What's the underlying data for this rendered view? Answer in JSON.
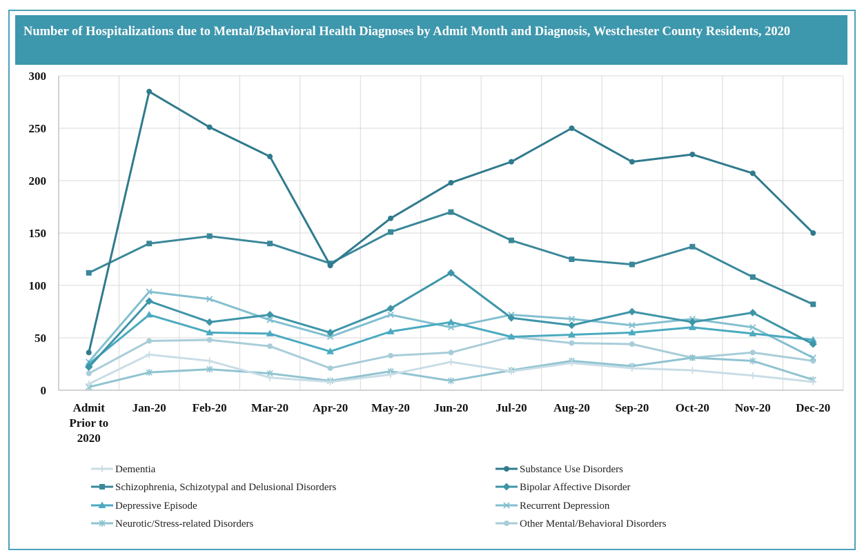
{
  "chart_data": {
    "type": "line",
    "title": "Number of Hospitalizations  due to Mental/Behavioral Health Diagnoses by Admit Month and Diagnosis, Westchester County Residents, 2020",
    "categories": [
      [
        "Admit",
        "Prior to",
        "2020"
      ],
      [
        "Jan-20"
      ],
      [
        "Feb-20"
      ],
      [
        "Mar-20"
      ],
      [
        "Apr-20"
      ],
      [
        "May-20"
      ],
      [
        "Jun-20"
      ],
      [
        "Jul-20"
      ],
      [
        "Aug-20"
      ],
      [
        "Sep-20"
      ],
      [
        "Oct-20"
      ],
      [
        "Nov-20"
      ],
      [
        "Dec-20"
      ]
    ],
    "y_ticks": [
      "0",
      "50",
      "100",
      "150",
      "200",
      "250",
      "300"
    ],
    "ylim": [
      0,
      300
    ],
    "grid": true,
    "legend_position": "bottom",
    "series": [
      {
        "name": "Dementia",
        "marker": "plus",
        "color": "#c9dde6",
        "values": [
          6,
          34,
          28,
          12,
          8,
          15,
          27,
          18,
          26,
          21,
          19,
          14,
          8
        ]
      },
      {
        "name": "Substance Use Disorders",
        "marker": "circle",
        "color": "#2f7a8d",
        "values": [
          36,
          285,
          251,
          223,
          119,
          164,
          198,
          218,
          250,
          218,
          225,
          207,
          150
        ]
      },
      {
        "name": "Schizophrenia, Schizotypal and Delusional Disorders",
        "marker": "square",
        "color": "#3a8799",
        "values": [
          112,
          140,
          147,
          140,
          121,
          151,
          170,
          143,
          125,
          120,
          137,
          108,
          82
        ]
      },
      {
        "name": "Bipolar Affective Disorder",
        "marker": "diamond",
        "color": "#3e95a8",
        "values": [
          22,
          85,
          65,
          72,
          55,
          78,
          112,
          69,
          62,
          75,
          65,
          74,
          44
        ]
      },
      {
        "name": "Depressive Episode",
        "marker": "triangle",
        "color": "#4aaac0",
        "values": [
          25,
          72,
          55,
          54,
          37,
          56,
          65,
          51,
          53,
          55,
          60,
          54,
          48
        ]
      },
      {
        "name": "Recurrent Depression",
        "marker": "x",
        "color": "#82bfcf",
        "values": [
          27,
          94,
          87,
          67,
          51,
          72,
          60,
          72,
          68,
          62,
          68,
          60,
          31
        ]
      },
      {
        "name": "Neurotic/Stress-related Disorders",
        "marker": "star",
        "color": "#8fc3d1",
        "values": [
          3,
          17,
          20,
          16,
          9,
          18,
          9,
          19,
          28,
          23,
          31,
          28,
          10
        ]
      },
      {
        "name": "Other Mental/Behavioral Disorders",
        "marker": "circle",
        "color": "#a8cdd9",
        "values": [
          16,
          47,
          48,
          42,
          21,
          33,
          36,
          51,
          45,
          44,
          31,
          36,
          28
        ]
      }
    ]
  }
}
